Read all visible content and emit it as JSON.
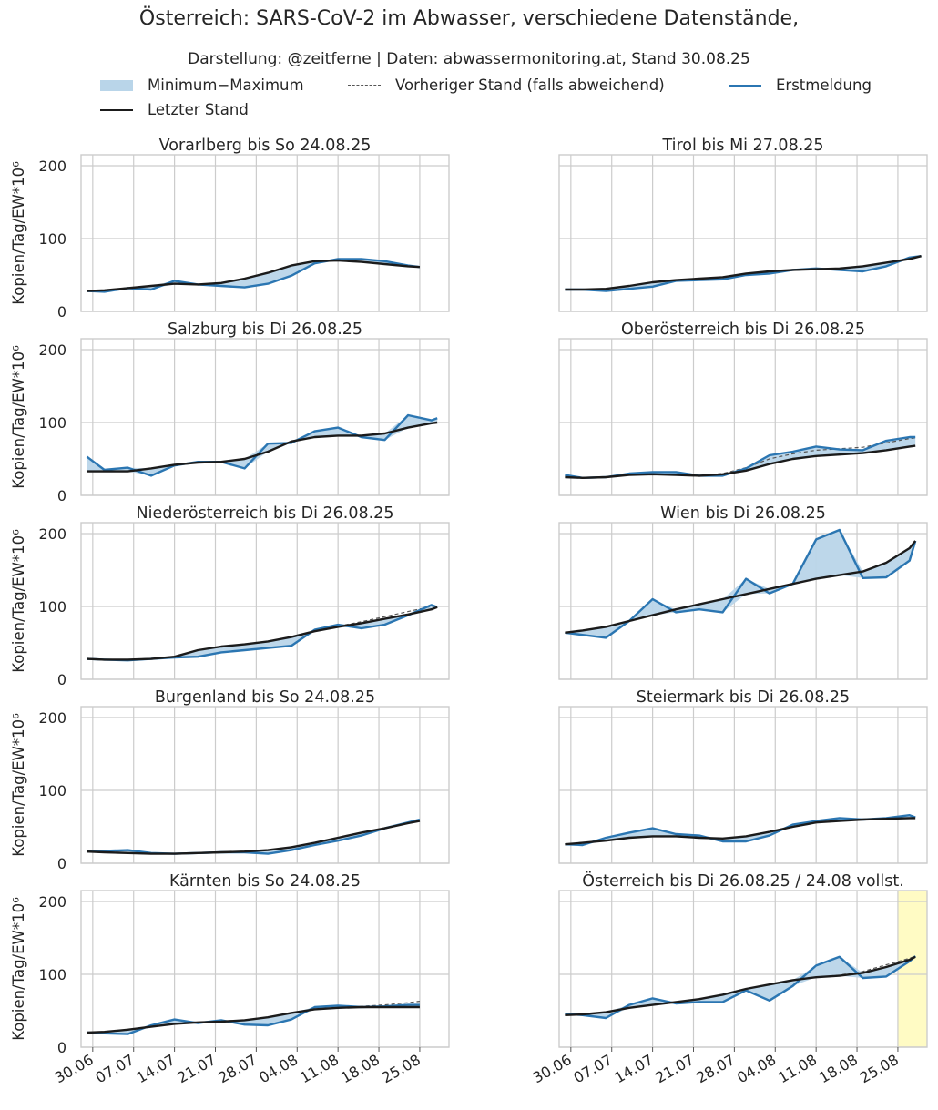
{
  "chart_data": {
    "type": "line",
    "title": "Österreich: SARS-CoV-2 im Abwasser, verschiedene Datenstände,",
    "subtitle": "Darstellung: @zeitferne | Daten: abwassermonitoring.at, Stand 30.08.25",
    "ylabel": "Kopien/Tag/EW*10⁶",
    "ylim": [
      0,
      215
    ],
    "yticks": [
      0,
      100,
      200
    ],
    "x_ticks": [
      "30.06",
      "07.07",
      "14.07",
      "21.07",
      "28.07",
      "04.08",
      "11.08",
      "18.08",
      "25.08"
    ],
    "x_day_range": [
      -2,
      61
    ],
    "grid": true,
    "legend_position": "top",
    "legend": {
      "band": "Minimum−Maximum",
      "dashed": "Vorheriger Stand (falls abweichend)",
      "blue": "Erstmeldung",
      "black": "Letzter Stand"
    },
    "colors": {
      "band": "#b9d5e9",
      "blue": "#2b76b2",
      "black": "#1b1b1b",
      "dashed": "#555555",
      "highlight": "#fffbc4"
    },
    "panels": [
      {
        "title": "Vorarlberg bis So 24.08.25",
        "x": [
          -1,
          2,
          6,
          10,
          14,
          18,
          22,
          26,
          30,
          34,
          38,
          42,
          46,
          50,
          54,
          56
        ],
        "last": [
          28,
          29,
          32,
          35,
          38,
          37,
          39,
          45,
          53,
          63,
          69,
          70,
          68,
          65,
          62,
          61
        ],
        "first": [
          28,
          27,
          32,
          30,
          42,
          37,
          35,
          33,
          38,
          49,
          66,
          72,
          72,
          69,
          63,
          61
        ]
      },
      {
        "title": "Tirol bis Mi 27.08.25",
        "x": [
          -1,
          2,
          6,
          10,
          14,
          18,
          22,
          26,
          30,
          34,
          38,
          42,
          46,
          50,
          54,
          58,
          60
        ],
        "last": [
          30,
          30,
          31,
          35,
          40,
          43,
          45,
          47,
          52,
          55,
          57,
          58,
          59,
          62,
          67,
          72,
          76
        ],
        "first": [
          30,
          30,
          28,
          31,
          34,
          42,
          43,
          44,
          50,
          52,
          57,
          59,
          57,
          55,
          62,
          74,
          76
        ]
      },
      {
        "title": "Salzburg bis Di 26.08.25",
        "x": [
          -1,
          2,
          6,
          10,
          14,
          18,
          22,
          26,
          30,
          34,
          38,
          42,
          46,
          50,
          54,
          58,
          59
        ],
        "last": [
          33,
          33,
          33,
          37,
          42,
          45,
          46,
          50,
          60,
          74,
          80,
          82,
          82,
          85,
          93,
          99,
          100
        ],
        "first": [
          53,
          35,
          38,
          27,
          41,
          46,
          46,
          37,
          71,
          72,
          88,
          93,
          80,
          76,
          110,
          103,
          106
        ]
      },
      {
        "title": "Oberösterreich bis Di 26.08.25",
        "x": [
          -1,
          2,
          6,
          10,
          14,
          18,
          22,
          26,
          30,
          34,
          38,
          42,
          46,
          50,
          54,
          58,
          59
        ],
        "last": [
          25,
          24,
          25,
          28,
          29,
          28,
          27,
          29,
          34,
          43,
          50,
          54,
          56,
          58,
          62,
          67,
          68
        ],
        "first": [
          28,
          24,
          25,
          30,
          32,
          32,
          27,
          27,
          37,
          55,
          60,
          67,
          63,
          62,
          75,
          80,
          80
        ],
        "prev": [
          25,
          24,
          25,
          28,
          29,
          28,
          27,
          30,
          38,
          50,
          57,
          62,
          64,
          66,
          72,
          78,
          79
        ]
      },
      {
        "title": "Niederösterreich bis Di 26.08.25",
        "x": [
          -1,
          2,
          6,
          10,
          14,
          18,
          22,
          26,
          30,
          34,
          38,
          42,
          46,
          50,
          54,
          58,
          59
        ],
        "last": [
          28,
          27,
          27,
          28,
          31,
          40,
          45,
          48,
          52,
          58,
          66,
          72,
          77,
          83,
          89,
          96,
          99
        ],
        "first": [
          28,
          27,
          26,
          28,
          30,
          31,
          37,
          40,
          43,
          46,
          68,
          75,
          70,
          75,
          88,
          102,
          99
        ],
        "prev": [
          28,
          27,
          27,
          28,
          31,
          40,
          45,
          48,
          52,
          58,
          66,
          73,
          79,
          86,
          93,
          100,
          100
        ]
      },
      {
        "title": "Wien bis Di 26.08.25",
        "x": [
          -1,
          2,
          6,
          10,
          14,
          18,
          22,
          26,
          30,
          34,
          38,
          42,
          46,
          50,
          54,
          58,
          59
        ],
        "last": [
          64,
          67,
          72,
          80,
          88,
          96,
          103,
          110,
          117,
          124,
          131,
          138,
          143,
          148,
          160,
          180,
          190
        ],
        "first": [
          64,
          61,
          57,
          80,
          110,
          92,
          96,
          92,
          138,
          118,
          131,
          192,
          205,
          139,
          140,
          163,
          190
        ]
      },
      {
        "title": "Burgenland bis So 24.08.25",
        "x": [
          -1,
          2,
          6,
          10,
          14,
          18,
          22,
          26,
          30,
          34,
          38,
          42,
          46,
          50,
          54,
          56
        ],
        "last": [
          16,
          15,
          14,
          13,
          13,
          14,
          15,
          16,
          18,
          22,
          28,
          35,
          42,
          48,
          55,
          58
        ],
        "first": [
          16,
          17,
          18,
          14,
          13,
          14,
          15,
          15,
          13,
          18,
          25,
          31,
          38,
          48,
          56,
          60
        ]
      },
      {
        "title": "Steiermark bis Di 26.08.25",
        "x": [
          -1,
          2,
          6,
          10,
          14,
          18,
          22,
          26,
          30,
          34,
          38,
          42,
          46,
          50,
          54,
          58,
          59
        ],
        "last": [
          26,
          28,
          31,
          35,
          37,
          37,
          35,
          34,
          37,
          43,
          50,
          56,
          58,
          60,
          61,
          62,
          62
        ],
        "first": [
          26,
          25,
          35,
          42,
          48,
          40,
          38,
          30,
          30,
          38,
          53,
          58,
          62,
          60,
          62,
          66,
          63
        ]
      },
      {
        "title": "Kärnten bis So 24.08.25",
        "x": [
          -1,
          2,
          6,
          10,
          14,
          18,
          22,
          26,
          30,
          34,
          38,
          42,
          46,
          50,
          54,
          56
        ],
        "last": [
          20,
          21,
          24,
          28,
          32,
          34,
          35,
          37,
          41,
          47,
          52,
          54,
          55,
          55,
          55,
          55
        ],
        "first": [
          20,
          19,
          18,
          30,
          38,
          33,
          37,
          31,
          30,
          38,
          55,
          57,
          55,
          56,
          58,
          58
        ],
        "prev": [
          20,
          21,
          24,
          28,
          32,
          34,
          35,
          37,
          41,
          47,
          52,
          54,
          56,
          58,
          61,
          63
        ]
      },
      {
        "title": "Österreich bis Di 26.08.25 / 24.08 vollst.",
        "x": [
          -1,
          2,
          6,
          10,
          14,
          18,
          22,
          26,
          30,
          34,
          38,
          42,
          46,
          50,
          54,
          58,
          59
        ],
        "last": [
          44,
          45,
          48,
          54,
          58,
          62,
          66,
          72,
          80,
          86,
          92,
          96,
          98,
          102,
          110,
          120,
          124
        ],
        "first": [
          46,
          44,
          40,
          58,
          67,
          60,
          62,
          62,
          78,
          64,
          84,
          112,
          124,
          95,
          97,
          118,
          125
        ],
        "prev": [
          44,
          45,
          48,
          54,
          58,
          62,
          66,
          72,
          80,
          86,
          92,
          96,
          99,
          104,
          113,
          122,
          125
        ],
        "highlight_x": [
          56,
          61
        ]
      }
    ]
  }
}
